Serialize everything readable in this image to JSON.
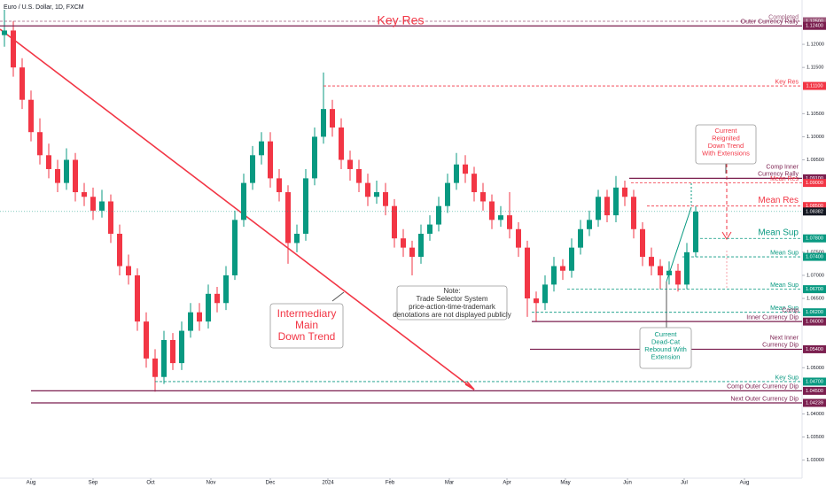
{
  "chart_data": {
    "type": "candlestick",
    "title": "Euro / U.S. Dollar, 1D, FXCM",
    "up_color": "#089981",
    "down_color": "#f23645",
    "candles": [
      [
        1.122,
        1.1275,
        1.1195,
        1.123
      ],
      [
        1.123,
        1.125,
        1.113,
        1.115
      ],
      [
        1.115,
        1.117,
        1.106,
        1.108
      ],
      [
        1.108,
        1.11,
        1.099,
        1.101
      ],
      [
        1.101,
        1.104,
        1.094,
        1.096
      ],
      [
        1.096,
        1.0985,
        1.091,
        1.093
      ],
      [
        1.093,
        1.095,
        1.088,
        1.09
      ],
      [
        1.09,
        1.0975,
        1.0885,
        1.095
      ],
      [
        1.095,
        1.0965,
        1.086,
        1.088
      ],
      [
        1.088,
        1.09,
        1.085,
        1.087
      ],
      [
        1.087,
        1.089,
        1.082,
        1.084
      ],
      [
        1.084,
        1.0885,
        1.0825,
        1.086
      ],
      [
        1.086,
        1.0875,
        1.077,
        1.079
      ],
      [
        1.079,
        1.081,
        1.07,
        1.072
      ],
      [
        1.072,
        1.0745,
        1.068,
        1.07
      ],
      [
        1.07,
        1.0715,
        1.058,
        1.06
      ],
      [
        1.06,
        1.062,
        1.05,
        1.052
      ],
      [
        1.052,
        1.054,
        1.0448,
        1.048
      ],
      [
        1.048,
        1.058,
        1.0465,
        1.056
      ],
      [
        1.056,
        1.0575,
        1.0495,
        1.051
      ],
      [
        1.051,
        1.06,
        1.0495,
        1.058
      ],
      [
        1.058,
        1.064,
        1.0565,
        1.062
      ],
      [
        1.062,
        1.064,
        1.058,
        1.06
      ],
      [
        1.06,
        1.068,
        1.0585,
        1.066
      ],
      [
        1.066,
        1.0675,
        1.062,
        1.064
      ],
      [
        1.064,
        1.072,
        1.0625,
        1.07
      ],
      [
        1.07,
        1.084,
        1.069,
        1.082
      ],
      [
        1.082,
        1.092,
        1.0805,
        1.09
      ],
      [
        1.09,
        1.098,
        1.0885,
        1.096
      ],
      [
        1.096,
        1.101,
        1.094,
        1.099
      ],
      [
        1.099,
        1.101,
        1.089,
        1.091
      ],
      [
        1.091,
        1.093,
        1.086,
        1.088
      ],
      [
        1.088,
        1.0895,
        1.0725,
        1.077
      ],
      [
        1.077,
        1.081,
        1.075,
        1.079
      ],
      [
        1.079,
        1.093,
        1.0775,
        1.091
      ],
      [
        1.091,
        1.102,
        1.0895,
        1.1
      ],
      [
        1.1,
        1.1139,
        1.0985,
        1.106
      ],
      [
        1.106,
        1.108,
        1.1,
        1.102
      ],
      [
        1.102,
        1.104,
        1.093,
        1.095
      ],
      [
        1.095,
        1.097,
        1.0905,
        1.093
      ],
      [
        1.093,
        1.095,
        1.088,
        1.09
      ],
      [
        1.09,
        1.092,
        1.085,
        1.087
      ],
      [
        1.087,
        1.0905,
        1.0855,
        1.088
      ],
      [
        1.088,
        1.09,
        1.083,
        1.085
      ],
      [
        1.085,
        1.0865,
        1.076,
        1.078
      ],
      [
        1.078,
        1.08,
        1.074,
        1.076
      ],
      [
        1.076,
        1.0775,
        1.07,
        1.074
      ],
      [
        1.074,
        1.081,
        1.0725,
        1.079
      ],
      [
        1.079,
        1.083,
        1.0775,
        1.081
      ],
      [
        1.081,
        1.087,
        1.0795,
        1.085
      ],
      [
        1.085,
        1.092,
        1.0835,
        1.09
      ],
      [
        1.09,
        1.0965,
        1.0885,
        1.094
      ],
      [
        1.094,
        1.096,
        1.09,
        1.092
      ],
      [
        1.092,
        1.0935,
        1.086,
        1.088
      ],
      [
        1.088,
        1.09,
        1.084,
        1.086
      ],
      [
        1.086,
        1.0875,
        1.08,
        1.082
      ],
      [
        1.082,
        1.085,
        1.0805,
        1.083
      ],
      [
        1.083,
        1.088,
        1.078,
        1.08
      ],
      [
        1.08,
        1.0815,
        1.074,
        1.076
      ],
      [
        1.076,
        1.0775,
        1.061,
        1.065
      ],
      [
        1.065,
        1.0665,
        1.06,
        1.064
      ],
      [
        1.064,
        1.07,
        1.0625,
        1.068
      ],
      [
        1.068,
        1.074,
        1.0665,
        1.072
      ],
      [
        1.072,
        1.0735,
        1.069,
        1.071
      ],
      [
        1.071,
        1.078,
        1.0695,
        1.076
      ],
      [
        1.076,
        1.082,
        1.0745,
        1.08
      ],
      [
        1.08,
        1.084,
        1.0785,
        1.082
      ],
      [
        1.082,
        1.0885,
        1.0805,
        1.087
      ],
      [
        1.087,
        1.0885,
        1.0815,
        1.083
      ],
      [
        1.083,
        1.0915,
        1.0815,
        1.089
      ],
      [
        1.089,
        1.0905,
        1.085,
        1.087
      ],
      [
        1.087,
        1.0885,
        1.078,
        1.08
      ],
      [
        1.08,
        1.0815,
        1.072,
        1.074
      ],
      [
        1.074,
        1.076,
        1.07,
        1.072
      ],
      [
        1.072,
        1.0735,
        1.067,
        1.07
      ],
      [
        1.07,
        1.073,
        1.068,
        1.071
      ],
      [
        1.071,
        1.0725,
        1.0665,
        1.068
      ],
      [
        1.068,
        1.077,
        1.067,
        1.075
      ],
      [
        1.075,
        1.085,
        1.074,
        1.0838
      ]
    ],
    "xlim": [
      0,
      90.5
    ],
    "xticks": [
      {
        "value": 3.5,
        "label": "Aug"
      },
      {
        "value": 10.5,
        "label": "Sep"
      },
      {
        "value": 17,
        "label": "Oct"
      },
      {
        "value": 23.8,
        "label": "Nov"
      },
      {
        "value": 30.5,
        "label": "Dec"
      },
      {
        "value": 37,
        "label": "2024"
      },
      {
        "value": 44,
        "label": "Feb"
      },
      {
        "value": 50.7,
        "label": "Mar"
      },
      {
        "value": 57.2,
        "label": "Apr"
      },
      {
        "value": 63.8,
        "label": "May"
      },
      {
        "value": 70.8,
        "label": "Jun"
      },
      {
        "value": 77.2,
        "label": "Jul"
      },
      {
        "value": 84,
        "label": "Aug"
      }
    ],
    "ylim": [
      1.0261,
      1.1296
    ],
    "yticks": [
      {
        "value": 1.12,
        "label": "1.12000"
      },
      {
        "value": 1.115,
        "label": "1.11500"
      },
      {
        "value": 1.105,
        "label": "1.10500"
      },
      {
        "value": 1.1,
        "label": "1.10000"
      },
      {
        "value": 1.095,
        "label": "1.09500"
      },
      {
        "value": 1.075,
        "label": "1.07500"
      },
      {
        "value": 1.07,
        "label": "1.07000"
      },
      {
        "value": 1.065,
        "label": "1.06500"
      },
      {
        "value": 1.05,
        "label": "1.05000"
      },
      {
        "value": 1.04,
        "label": "1.04000"
      },
      {
        "value": 1.035,
        "label": "1.03500"
      },
      {
        "value": 1.03,
        "label": "1.03000"
      }
    ],
    "levels": [
      {
        "value": 1.125,
        "price_label": "1.12500",
        "label": [
          "Completed"
        ],
        "color": "#9c5a7c",
        "style": "dashed",
        "start": 0
      },
      {
        "value": 1.124,
        "price_label": "1.12400",
        "label": [
          "Outer Currency Rally"
        ],
        "color": "#7b1f4f",
        "style": "solid",
        "start": 0
      },
      {
        "value": 1.111,
        "price_label": "1.11100",
        "label": [
          "Key Res"
        ],
        "color": "#f23645",
        "style": "dashed",
        "start": 36.5
      },
      {
        "value": 1.091,
        "price_label": "1.09100",
        "label": [
          "Comp Inner",
          "Currency Rally"
        ],
        "color": "#7b1f4f",
        "style": "solid",
        "start": 71
      },
      {
        "value": 1.09,
        "price_label": "1.09000",
        "label": [
          "Mean Res"
        ],
        "color": "#f23645",
        "style": "dashed",
        "start": 71.2
      },
      {
        "value": 1.085,
        "price_label": "1.08500",
        "label": [
          "Mean Res"
        ],
        "color": "#f23645",
        "style": "dashed",
        "start": 73
      },
      {
        "value": 1.078,
        "price_label": "1.07800",
        "label": [
          "Mean Sup"
        ],
        "color": "#089981",
        "style": "dashed",
        "start": 78.5
      },
      {
        "value": 1.074,
        "price_label": "1.07400",
        "label": [
          "Mean Sup"
        ],
        "color": "#089981",
        "style": "dashed",
        "start": 77
      },
      {
        "value": 1.067,
        "price_label": "1.06700",
        "label": [
          "Mean Sup"
        ],
        "color": "#089981",
        "style": "dashed",
        "start": 64
      },
      {
        "value": 1.062,
        "price_label": "1.06200",
        "label": [
          "Mean Sup"
        ],
        "color": "#089981",
        "style": "dashed",
        "start": 60
      },
      {
        "value": 1.06,
        "price_label": "1.06000",
        "label": [
          "Comp",
          "Inner Currency Dip"
        ],
        "color": "#7b1f4f",
        "style": "solid",
        "start": 60
      },
      {
        "value": 1.054,
        "price_label": "1.05400",
        "label": [
          "Next Inner",
          "Currency Dip"
        ],
        "color": "#7b1f4f",
        "style": "solid",
        "start": 59.8
      },
      {
        "value": 1.047,
        "price_label": "1.04700",
        "label": [
          "Key Sup"
        ],
        "color": "#089981",
        "style": "dashed",
        "start": 17.5
      },
      {
        "value": 1.045,
        "price_label": "1.04500",
        "label": [
          "Comp Outer Currency Dip"
        ],
        "color": "#7b1f4f",
        "style": "solid",
        "start": 3.5
      },
      {
        "value": 1.04239,
        "price_label": "1.04239",
        "label": [
          "Next Outer Currency Dip"
        ],
        "color": "#7b1f4f",
        "style": "solid",
        "start": 3.5
      }
    ],
    "last_price": {
      "value": 1.08382,
      "label": "1.08382"
    },
    "annotations": [
      {
        "text": [
          "Key Res"
        ],
        "color": "#f23645"
      },
      {
        "text": [
          "Intermediary",
          "Main",
          "Down Trend"
        ],
        "color": "#f23645"
      },
      {
        "text": [
          "Note:",
          "Trade Selector System",
          "price-action-time-trademark",
          "denotations are not displayed publicly"
        ],
        "color": "#333333"
      },
      {
        "text": [
          "Current",
          "Reignited",
          "Down Trend",
          "With Extensions"
        ],
        "color": "#f23645"
      },
      {
        "text": [
          "Current",
          "Dead-Cat",
          "Rebound With",
          "Extension"
        ],
        "color": "#089981"
      }
    ]
  }
}
